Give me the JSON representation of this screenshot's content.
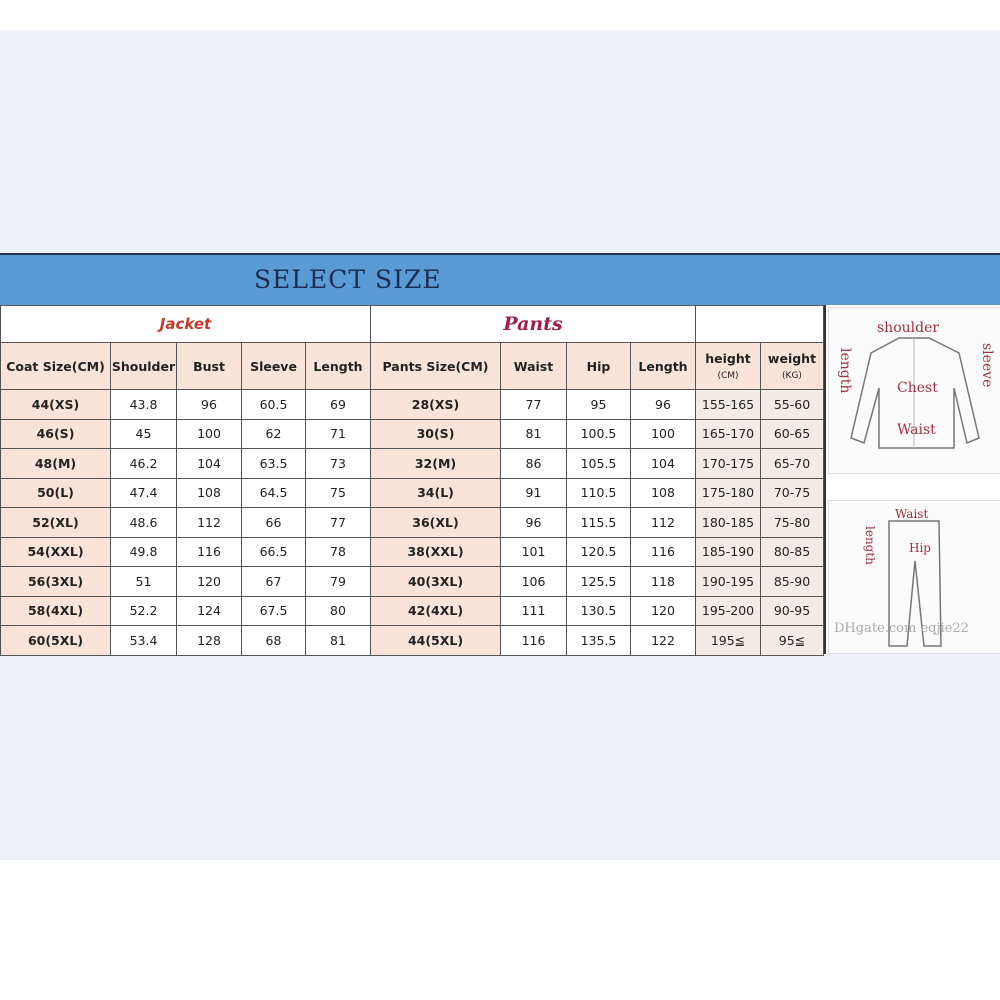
{
  "title": "SELECT SIZE",
  "jacket": {
    "label": "Jacket",
    "headers": [
      "Coat Size(CM)",
      "Shoulder",
      "Bust",
      "Sleeve",
      "Length"
    ],
    "rows": [
      [
        "44(XS)",
        "43.8",
        "96",
        "60.5",
        "69"
      ],
      [
        "46(S)",
        "45",
        "100",
        "62",
        "71"
      ],
      [
        "48(M)",
        "46.2",
        "104",
        "63.5",
        "73"
      ],
      [
        "50(L)",
        "47.4",
        "108",
        "64.5",
        "75"
      ],
      [
        "52(XL)",
        "48.6",
        "112",
        "66",
        "77"
      ],
      [
        "54(XXL)",
        "49.8",
        "116",
        "66.5",
        "78"
      ],
      [
        "56(3XL)",
        "51",
        "120",
        "67",
        "79"
      ],
      [
        "58(4XL)",
        "52.2",
        "124",
        "67.5",
        "80"
      ],
      [
        "60(5XL)",
        "53.4",
        "128",
        "68",
        "81"
      ]
    ]
  },
  "pants": {
    "label": "Pants",
    "headers": [
      "Pants Size(CM)",
      "Waist",
      "Hip",
      "Length"
    ],
    "rows": [
      [
        "28(XS)",
        "77",
        "95",
        "96"
      ],
      [
        "30(S)",
        "81",
        "100.5",
        "100"
      ],
      [
        "32(M)",
        "86",
        "105.5",
        "104"
      ],
      [
        "34(L)",
        "91",
        "110.5",
        "108"
      ],
      [
        "36(XL)",
        "96",
        "115.5",
        "112"
      ],
      [
        "38(XXL)",
        "101",
        "120.5",
        "116"
      ],
      [
        "40(3XL)",
        "106",
        "125.5",
        "118"
      ],
      [
        "42(4XL)",
        "111",
        "130.5",
        "120"
      ],
      [
        "44(5XL)",
        "116",
        "135.5",
        "122"
      ]
    ]
  },
  "body": {
    "headers": [
      [
        "height",
        "(CM)"
      ],
      [
        "weight",
        "(KG)"
      ]
    ],
    "rows": [
      [
        "155-165",
        "55-60"
      ],
      [
        "165-170",
        "60-65"
      ],
      [
        "170-175",
        "65-70"
      ],
      [
        "175-180",
        "70-75"
      ],
      [
        "180-185",
        "75-80"
      ],
      [
        "185-190",
        "80-85"
      ],
      [
        "190-195",
        "85-90"
      ],
      [
        "195-200",
        "90-95"
      ],
      [
        "195≦",
        "95≦"
      ]
    ]
  },
  "diagram": {
    "jacket_labels": [
      "shoulder",
      "length",
      "sleeve",
      "Chest",
      "Waist"
    ],
    "pants_labels": [
      "Waist",
      "length",
      "Hip"
    ],
    "watermark": "DHgate.com eqjie22"
  }
}
